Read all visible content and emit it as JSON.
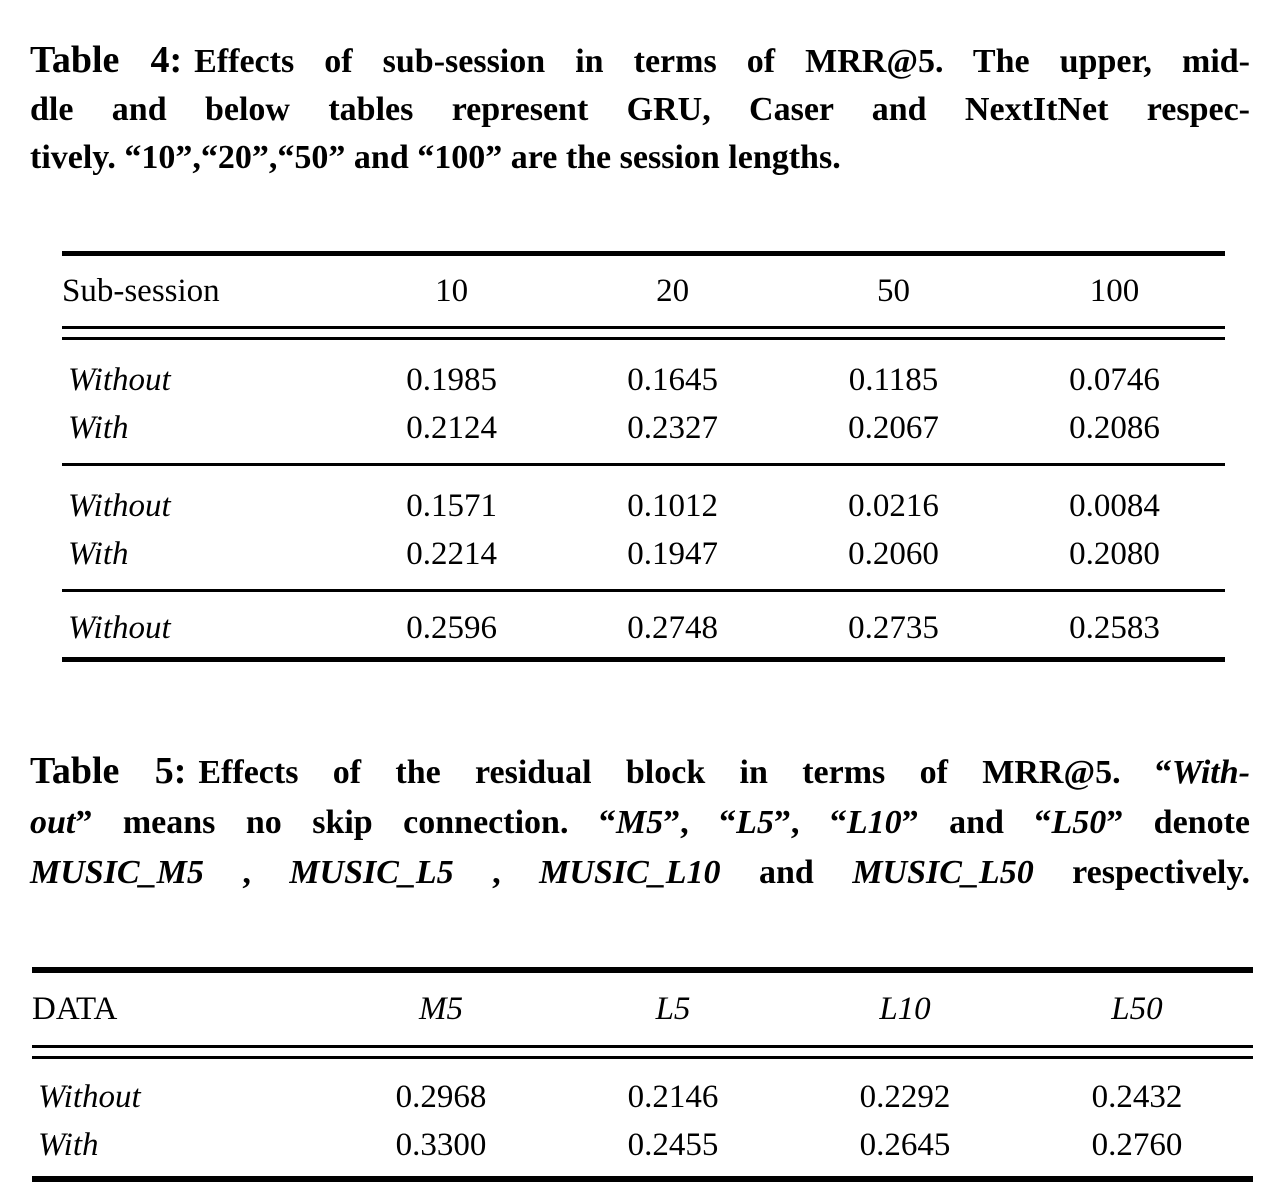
{
  "page": {
    "background": "#ffffff",
    "text_color": "#000000"
  },
  "caption_table4": {
    "label": "Table 4:",
    "line1": "Effects of sub-session in terms of MRR@5. The upper, mid-",
    "line2": "dle and below tables represent GRU, Caser and NextItNet respec-",
    "line3": "tively. “10”,“20”,“50” and “100” are the session lengths."
  },
  "caption_table5": {
    "label": "Table 5:",
    "line1_text": "Effects of the residual block in terms of MRR@5. “",
    "line1_italic": "With-",
    "line2_italic1": "out",
    "line2_text1": "” means no skip connection. “",
    "line2_italic2": "M5",
    "line2_text2": "”, “",
    "line2_italic3": "L5",
    "line2_text3": "”, “",
    "line2_italic4": "L10",
    "line2_text4": "” and “",
    "line2_italic5": "L50",
    "line2_text5": "” denote",
    "line3_italic1": "MUSIC_M5",
    "line3_text1": " , ",
    "line3_italic2": "MUSIC_L5",
    "line3_text2": " , ",
    "line3_italic3": "MUSIC_L10",
    "line3_text3": " and ",
    "line3_italic4": "MUSIC_L50",
    "line3_text4": " respectively."
  },
  "table4": {
    "header": {
      "label": "Sub-session",
      "col1": "10",
      "col2": "20",
      "col3": "50",
      "col4": "100"
    },
    "block1": {
      "row1": {
        "label": "Without",
        "v1": "0.1985",
        "v2": "0.1645",
        "v3": "0.1185",
        "v4": "0.0746"
      },
      "row2": {
        "label": "With",
        "v1": "0.2124",
        "v2": "0.2327",
        "v3": "0.2067",
        "v4": "0.2086"
      }
    },
    "block2": {
      "row1": {
        "label": "Without",
        "v1": "0.1571",
        "v2": "0.1012",
        "v3": "0.0216",
        "v4": "0.0084"
      },
      "row2": {
        "label": "With",
        "v1": "0.2214",
        "v2": "0.1947",
        "v3": "0.2060",
        "v4": "0.2080"
      }
    },
    "block3": {
      "row1": {
        "label": "Without",
        "v1": "0.2596",
        "v2": "0.2748",
        "v3": "0.2735",
        "v4": "0.2583"
      }
    }
  },
  "table5": {
    "header": {
      "label": "DATA",
      "col1": "M5",
      "col2": "L5",
      "col3": "L10",
      "col4": "L50"
    },
    "row1": {
      "label": "Without",
      "v1": "0.2968",
      "v2": "0.2146",
      "v3": "0.2292",
      "v4": "0.2432"
    },
    "row2": {
      "label": "With",
      "v1": "0.3300",
      "v2": "0.2455",
      "v3": "0.2645",
      "v4": "0.2760"
    }
  }
}
